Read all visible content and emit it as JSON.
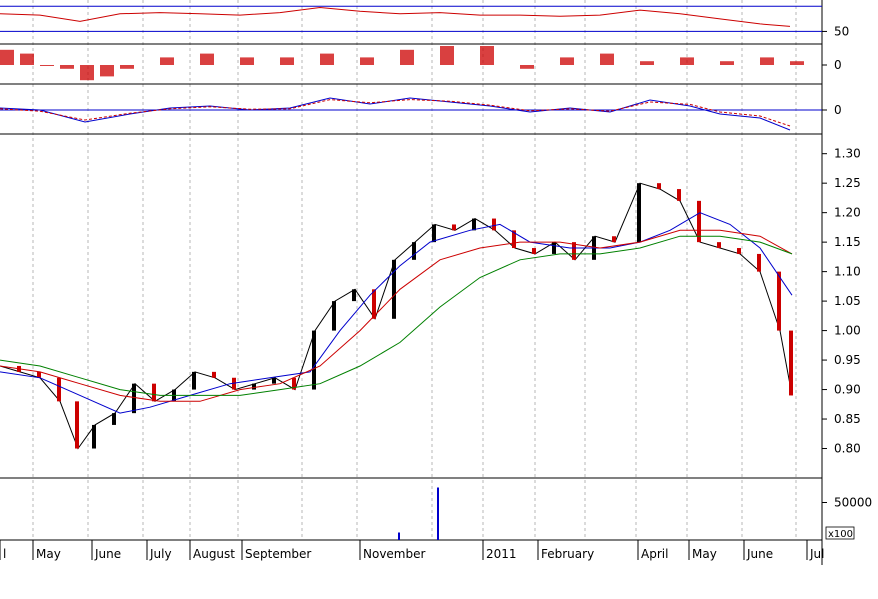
{
  "chart_data": [
    {
      "type": "line",
      "panel": "oscillator-1",
      "ticks": [
        {
          "label": "50",
          "value": 50
        }
      ],
      "reference_lines": [
        70,
        50
      ],
      "ylim": [
        40,
        75
      ],
      "series": [
        {
          "color": "#cc0000",
          "x": [
            0,
            40,
            80,
            120,
            160,
            200,
            240,
            280,
            320,
            360,
            400,
            440,
            480,
            520,
            560,
            600,
            640,
            680,
            720,
            760,
            790
          ],
          "y": [
            64,
            63,
            58,
            64,
            65,
            64,
            63,
            65,
            69,
            66,
            64,
            65,
            63,
            63,
            62,
            63,
            67,
            64,
            60,
            56,
            54
          ]
        }
      ]
    },
    {
      "type": "bar",
      "panel": "histogram",
      "ticks": [
        {
          "label": "0",
          "value": 0
        }
      ],
      "ylim": [
        -5,
        5
      ],
      "color": "#cc0000",
      "series": [
        {
          "x": [
            0,
            20,
            40,
            60,
            80,
            100,
            120,
            160,
            200,
            240,
            280,
            320,
            360,
            400,
            440,
            480,
            520,
            560,
            600,
            640,
            680,
            720,
            760,
            790
          ],
          "values": [
            4,
            3,
            0,
            -1,
            -4,
            -3,
            -1,
            2,
            3,
            2,
            2,
            3,
            2,
            4,
            5,
            5,
            -1,
            2,
            3,
            1,
            2,
            1,
            2,
            1
          ]
        }
      ]
    },
    {
      "type": "line",
      "panel": "oscillator-2",
      "ticks": [
        {
          "label": "0",
          "value": 0
        }
      ],
      "reference_lines": [
        0
      ],
      "ylim": [
        -6,
        6
      ],
      "series": [
        {
          "color": "#0000cc",
          "x": [
            0,
            40,
            85,
            130,
            170,
            210,
            250,
            290,
            330,
            370,
            410,
            450,
            490,
            530,
            570,
            610,
            650,
            690,
            720,
            760,
            790
          ],
          "y": [
            0.5,
            0,
            -3,
            -1,
            0.5,
            1,
            0,
            0.5,
            3,
            1.5,
            3,
            2,
            1,
            -0.5,
            0.5,
            -0.5,
            2.5,
            1,
            -1,
            -2,
            -5
          ]
        },
        {
          "color": "#cc0000",
          "dashed": true,
          "x": [
            0,
            40,
            85,
            130,
            170,
            210,
            250,
            290,
            330,
            370,
            410,
            450,
            490,
            530,
            570,
            610,
            650,
            690,
            720,
            760,
            790
          ],
          "y": [
            0.3,
            -0.3,
            -2.5,
            -0.8,
            0.3,
            0.8,
            0.2,
            0.3,
            2.6,
            1.8,
            2.6,
            2.2,
            1.2,
            -0.2,
            0.3,
            -0.3,
            2,
            1.4,
            -0.5,
            -1.5,
            -4
          ]
        }
      ]
    },
    {
      "type": "line",
      "panel": "price",
      "ticks": [
        {
          "label": "1.30",
          "value": 1.3
        },
        {
          "label": "1.25",
          "value": 1.25
        },
        {
          "label": "1.20",
          "value": 1.2
        },
        {
          "label": "1.15",
          "value": 1.15
        },
        {
          "label": "1.10",
          "value": 1.1
        },
        {
          "label": "1.05",
          "value": 1.05
        },
        {
          "label": "1.00",
          "value": 1.0
        },
        {
          "label": "0.95",
          "value": 0.95
        },
        {
          "label": "0.90",
          "value": 0.9
        },
        {
          "label": "0.85",
          "value": 0.85
        },
        {
          "label": "0.80",
          "value": 0.8
        }
      ],
      "ylim": [
        0.75,
        1.33
      ],
      "series": [
        {
          "color": "#000000",
          "x": [
            0,
            20,
            40,
            60,
            78,
            95,
            115,
            135,
            155,
            175,
            195,
            215,
            235,
            255,
            275,
            295,
            315,
            335,
            355,
            375,
            395,
            415,
            435,
            455,
            475,
            495,
            515,
            535,
            555,
            575,
            595,
            615,
            640,
            660,
            680,
            700,
            720,
            740,
            760,
            780,
            792
          ],
          "y": [
            0.94,
            0.93,
            0.92,
            0.88,
            0.8,
            0.84,
            0.86,
            0.91,
            0.88,
            0.9,
            0.93,
            0.92,
            0.9,
            0.91,
            0.92,
            0.9,
            1.0,
            1.05,
            1.07,
            1.02,
            1.12,
            1.15,
            1.18,
            1.17,
            1.19,
            1.17,
            1.14,
            1.13,
            1.15,
            1.12,
            1.16,
            1.15,
            1.25,
            1.24,
            1.22,
            1.15,
            1.14,
            1.13,
            1.1,
            1.0,
            0.89
          ]
        },
        {
          "color": "#0000cc",
          "x": [
            0,
            40,
            80,
            120,
            150,
            190,
            230,
            270,
            310,
            340,
            370,
            400,
            430,
            470,
            500,
            530,
            570,
            610,
            640,
            670,
            700,
            730,
            760,
            792
          ],
          "y": [
            0.93,
            0.92,
            0.89,
            0.86,
            0.87,
            0.89,
            0.91,
            0.92,
            0.93,
            1.0,
            1.06,
            1.11,
            1.15,
            1.17,
            1.18,
            1.15,
            1.14,
            1.14,
            1.15,
            1.17,
            1.2,
            1.18,
            1.14,
            1.06
          ]
        },
        {
          "color": "#cc0000",
          "x": [
            0,
            40,
            80,
            120,
            160,
            200,
            240,
            280,
            320,
            360,
            400,
            440,
            480,
            520,
            560,
            600,
            640,
            680,
            720,
            760,
            792
          ],
          "y": [
            0.94,
            0.93,
            0.91,
            0.89,
            0.88,
            0.88,
            0.9,
            0.91,
            0.94,
            1.0,
            1.07,
            1.12,
            1.14,
            1.15,
            1.15,
            1.14,
            1.15,
            1.17,
            1.17,
            1.16,
            1.13
          ]
        },
        {
          "color": "#008000",
          "x": [
            0,
            40,
            80,
            120,
            160,
            200,
            240,
            280,
            320,
            360,
            400,
            440,
            480,
            520,
            560,
            600,
            640,
            680,
            720,
            760,
            792
          ],
          "y": [
            0.95,
            0.94,
            0.92,
            0.9,
            0.89,
            0.89,
            0.89,
            0.9,
            0.91,
            0.94,
            0.98,
            1.04,
            1.09,
            1.12,
            1.13,
            1.13,
            1.14,
            1.16,
            1.16,
            1.15,
            1.13
          ]
        }
      ]
    },
    {
      "type": "bar",
      "panel": "volume",
      "ticks": [
        {
          "label": "50000",
          "value": 50000
        }
      ],
      "multiplier_label": "x100",
      "ylim": [
        0,
        80000
      ],
      "series": [
        {
          "color": "#0000cc",
          "x": [
            398,
            437
          ],
          "values": [
            10000,
            70000
          ]
        }
      ]
    }
  ],
  "x_axis": {
    "labels": [
      {
        "label": "l",
        "x": 0
      },
      {
        "label": "May",
        "x": 33
      },
      {
        "label": "June",
        "x": 92
      },
      {
        "label": "July",
        "x": 147
      },
      {
        "label": "August",
        "x": 190
      },
      {
        "label": "September",
        "x": 242
      },
      {
        "label": "November",
        "x": 360
      },
      {
        "label": "2011",
        "x": 483
      },
      {
        "label": "February",
        "x": 538
      },
      {
        "label": "April",
        "x": 638
      },
      {
        "label": "May",
        "x": 689
      },
      {
        "label": "June",
        "x": 744
      },
      {
        "label": "Jul",
        "x": 807
      }
    ],
    "gridlines": [
      33,
      88,
      143,
      190,
      238,
      302,
      357,
      432,
      483,
      535,
      585,
      636,
      687,
      742,
      796
    ]
  },
  "colors": {
    "grid": "#888888",
    "reference": "#0000cc",
    "up": "#000000",
    "down": "#cc0000"
  }
}
